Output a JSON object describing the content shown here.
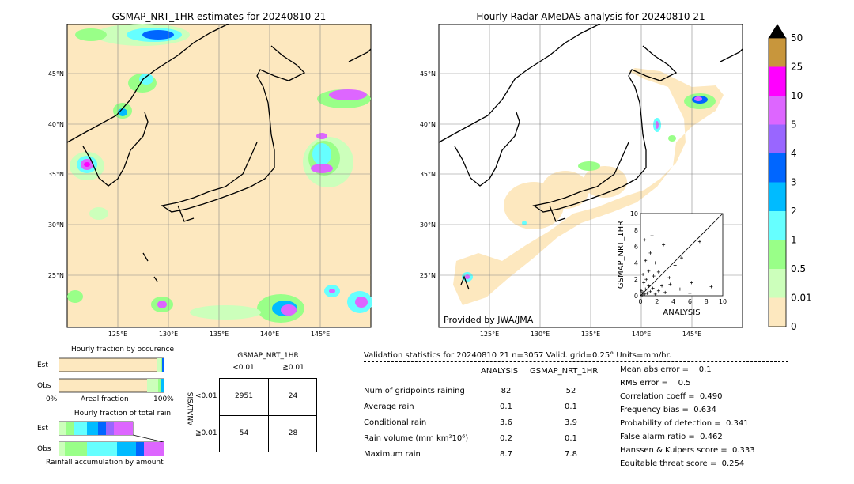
{
  "left_map": {
    "title": "GSMAP_NRT_1HR estimates for 20240810 21",
    "lat_labels": [
      "45°N",
      "40°N",
      "35°N",
      "30°N",
      "25°N"
    ],
    "lon_labels": [
      "125°E",
      "130°E",
      "135°E",
      "140°E",
      "145°E"
    ]
  },
  "right_map": {
    "title": "Hourly Radar-AMeDAS analysis for 20240810 21",
    "lat_labels": [
      "45°N",
      "40°N",
      "35°N",
      "30°N",
      "25°N"
    ],
    "lon_labels": [
      "125°E",
      "130°E",
      "135°E",
      "140°E",
      "145°E"
    ],
    "credit": "Provided by JWA/JMA"
  },
  "colorbar": {
    "labels": [
      "50",
      "25",
      "10",
      "5",
      "4",
      "3",
      "2",
      "1",
      "0.5",
      "0.01",
      "0"
    ],
    "colors": [
      "#c8963c",
      "#ff00ff",
      "#dd66ff",
      "#9966ff",
      "#0066ff",
      "#00bbff",
      "#66ffff",
      "#99ff88",
      "#ccffbb",
      "#fde8bf"
    ]
  },
  "occurrence": {
    "title": "Hourly fraction by occurence",
    "rows": [
      "Est",
      "Obs"
    ],
    "axis_left": "0%",
    "axis_mid": "Areal fraction",
    "axis_right": "100%"
  },
  "total_rain": {
    "title": "Hourly fraction of total rain",
    "rows": [
      "Est",
      "Obs"
    ],
    "footer": "Rainfall accumulation by amount"
  },
  "contingency": {
    "title": "GSMAP_NRT_1HR",
    "col_labels": [
      "<0.01",
      "≧0.01"
    ],
    "row_axis": "ANALYSIS",
    "row_labels": [
      "<0.01",
      "≧0.01"
    ],
    "cells": [
      [
        "2951",
        "24"
      ],
      [
        "54",
        "28"
      ]
    ]
  },
  "validation": {
    "header": "Validation statistics for 20240810 21  n=3057 Valid. grid=0.25° Units=mm/hr.",
    "col_analysis": "ANALYSIS",
    "col_gsmap": "GSMAP_NRT_1HR",
    "rows": [
      {
        "label": "Num of gridpoints raining",
        "analysis": "82",
        "gsmap": "52"
      },
      {
        "label": "Average rain",
        "analysis": "0.1",
        "gsmap": "0.1"
      },
      {
        "label": "Conditional rain",
        "analysis": "3.6",
        "gsmap": "3.9"
      },
      {
        "label": "Rain volume (mm km²10⁶)",
        "analysis": "0.2",
        "gsmap": "0.1"
      },
      {
        "label": "Maximum rain",
        "analysis": "8.7",
        "gsmap": "7.8"
      }
    ],
    "scores": [
      "Mean abs error =    0.1",
      "RMS error =    0.5",
      "Correlation coeff =  0.490",
      "Frequency bias =  0.634",
      "Probability of detection =  0.341",
      "False alarm ratio =  0.462",
      "Hanssen & Kuipers score =  0.333",
      "Equitable threat score =  0.254"
    ]
  },
  "chart_data": {
    "type": "scatter",
    "xlabel": "ANALYSIS",
    "ylabel": "GSMAP_NRT_1HR",
    "xlim": [
      0,
      10
    ],
    "ylim": [
      0,
      10
    ],
    "ticks": [
      "0",
      "2",
      "4",
      "6",
      "8",
      "10"
    ],
    "points": [
      [
        0.2,
        0.1
      ],
      [
        0.3,
        0.4
      ],
      [
        0.5,
        0.2
      ],
      [
        0.6,
        0.8
      ],
      [
        0.8,
        0.3
      ],
      [
        1.0,
        1.2
      ],
      [
        1.2,
        0.5
      ],
      [
        0.4,
        1.6
      ],
      [
        0.7,
        2.0
      ],
      [
        1.5,
        0.9
      ],
      [
        1.8,
        0.2
      ],
      [
        0.3,
        2.6
      ],
      [
        1.0,
        3.0
      ],
      [
        2.2,
        0.6
      ],
      [
        2.6,
        1.2
      ],
      [
        3.0,
        0.4
      ],
      [
        3.5,
        2.2
      ],
      [
        0.6,
        4.3
      ],
      [
        1.2,
        5.2
      ],
      [
        1.8,
        4.0
      ],
      [
        0.5,
        6.8
      ],
      [
        2.8,
        6.2
      ],
      [
        4.2,
        3.7
      ],
      [
        3.6,
        1.4
      ],
      [
        5.0,
        4.6
      ],
      [
        4.8,
        0.8
      ],
      [
        6.2,
        1.6
      ],
      [
        6.0,
        0.3
      ],
      [
        7.2,
        6.6
      ],
      [
        8.6,
        1.1
      ],
      [
        2.2,
        2.9
      ],
      [
        1.4,
        7.3
      ],
      [
        0.1,
        0.6
      ],
      [
        0.9,
        1.7
      ],
      [
        1.6,
        2.4
      ]
    ]
  }
}
